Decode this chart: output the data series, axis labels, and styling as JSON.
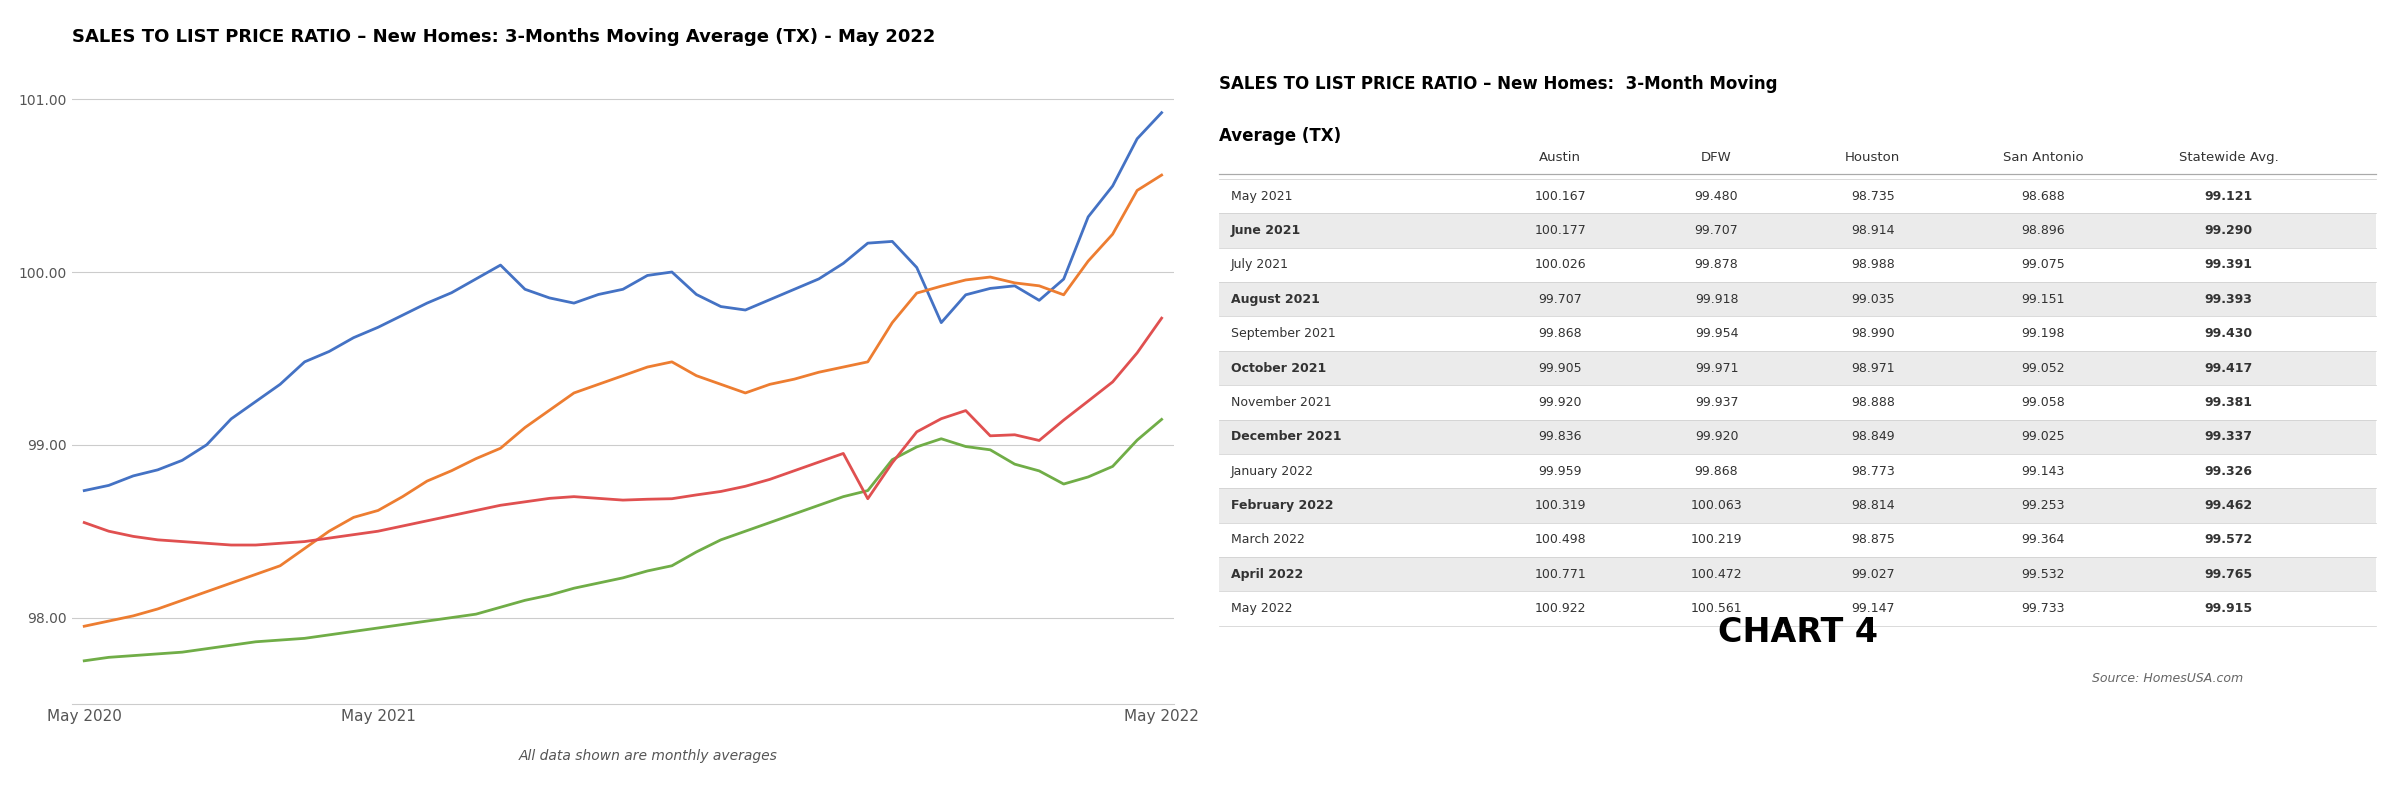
{
  "chart_title": "SALES TO LIST PRICE RATIO – New Homes: 3-Months Moving Average (TX) - May 2022",
  "table_title_line1": "SALES TO LIST PRICE RATIO – New Homes:  3-Month Moving",
  "table_title_line2": "Average (TX)",
  "subtitle": "All data shown are monthly averages",
  "source": "Source: HomesUSA.com",
  "chart_label": "CHART 4",
  "legend_labels": [
    "Austin",
    "DFW",
    "Houston",
    "San Antonio"
  ],
  "line_colors": [
    "#4472C4",
    "#ED7D31",
    "#70AD47",
    "#E05050"
  ],
  "x_tick_labels": [
    "May 2020",
    "May 2021",
    "May 2022"
  ],
  "ytick_labels": [
    "98.00",
    "99.00",
    "100.00",
    "101.00"
  ],
  "col_headers": [
    "Austin",
    "DFW",
    "Houston",
    "San Antonio",
    "Statewide Avg."
  ],
  "table_data": [
    [
      "May 2021",
      100.167,
      99.48,
      98.735,
      98.688,
      99.121
    ],
    [
      "June 2021",
      100.177,
      99.707,
      98.914,
      98.896,
      99.29
    ],
    [
      "July 2021",
      100.026,
      99.878,
      98.988,
      99.075,
      99.391
    ],
    [
      "August 2021",
      99.707,
      99.918,
      99.035,
      99.151,
      99.393
    ],
    [
      "September 2021",
      99.868,
      99.954,
      98.99,
      99.198,
      99.43
    ],
    [
      "October 2021",
      99.905,
      99.971,
      98.971,
      99.052,
      99.417
    ],
    [
      "November 2021",
      99.92,
      99.937,
      98.888,
      99.058,
      99.381
    ],
    [
      "December 2021",
      99.836,
      99.92,
      98.849,
      99.025,
      99.337
    ],
    [
      "January 2022",
      99.959,
      99.868,
      98.773,
      99.143,
      99.326
    ],
    [
      "February 2022",
      100.319,
      100.063,
      98.814,
      99.253,
      99.462
    ],
    [
      "March 2022",
      100.498,
      100.219,
      98.875,
      99.364,
      99.572
    ],
    [
      "April 2022",
      100.771,
      100.472,
      99.027,
      99.532,
      99.765
    ],
    [
      "May 2022",
      100.922,
      100.561,
      99.147,
      99.733,
      99.915
    ]
  ],
  "austin_full": [
    98.735,
    98.765,
    98.82,
    98.855,
    98.91,
    99.0,
    99.15,
    99.25,
    99.35,
    99.48,
    99.54,
    99.62,
    99.68,
    99.75,
    99.82,
    99.88,
    99.96,
    100.04,
    99.9,
    99.85,
    99.82,
    99.87,
    99.9,
    99.98,
    100.0,
    99.87,
    99.8,
    99.78,
    99.84,
    99.9,
    99.96,
    100.05,
    100.167,
    100.177,
    100.026,
    99.707,
    99.868,
    99.905,
    99.92,
    99.836,
    99.959,
    100.319,
    100.498,
    100.771,
    100.922
  ],
  "dfw_full": [
    97.95,
    97.98,
    98.01,
    98.05,
    98.1,
    98.15,
    98.2,
    98.25,
    98.3,
    98.4,
    98.5,
    98.58,
    98.62,
    98.7,
    98.79,
    98.85,
    98.92,
    98.98,
    99.1,
    99.2,
    99.3,
    99.35,
    99.4,
    99.45,
    99.48,
    99.4,
    99.35,
    99.3,
    99.35,
    99.38,
    99.42,
    99.45,
    99.48,
    99.707,
    99.878,
    99.918,
    99.954,
    99.971,
    99.937,
    99.92,
    99.868,
    100.063,
    100.219,
    100.472,
    100.561
  ],
  "houston_full": [
    97.75,
    97.77,
    97.78,
    97.79,
    97.8,
    97.82,
    97.84,
    97.86,
    97.87,
    97.88,
    97.9,
    97.92,
    97.94,
    97.96,
    97.98,
    98.0,
    98.02,
    98.06,
    98.1,
    98.13,
    98.17,
    98.2,
    98.23,
    98.27,
    98.3,
    98.38,
    98.45,
    98.5,
    98.55,
    98.6,
    98.65,
    98.7,
    98.735,
    98.914,
    98.988,
    99.035,
    98.99,
    98.971,
    98.888,
    98.849,
    98.773,
    98.814,
    98.875,
    99.027,
    99.147
  ],
  "san_antonio_full": [
    98.55,
    98.5,
    98.47,
    98.45,
    98.44,
    98.43,
    98.42,
    98.42,
    98.43,
    98.44,
    98.46,
    98.48,
    98.5,
    98.53,
    98.56,
    98.59,
    98.62,
    98.65,
    98.67,
    98.69,
    98.7,
    98.69,
    98.68,
    98.685,
    98.688,
    98.71,
    98.73,
    98.76,
    98.8,
    98.85,
    98.9,
    98.95,
    98.688,
    98.896,
    99.075,
    99.151,
    99.198,
    99.052,
    99.058,
    99.025,
    99.143,
    99.253,
    99.364,
    99.532,
    99.733
  ],
  "bg_color": "#FFFFFF"
}
